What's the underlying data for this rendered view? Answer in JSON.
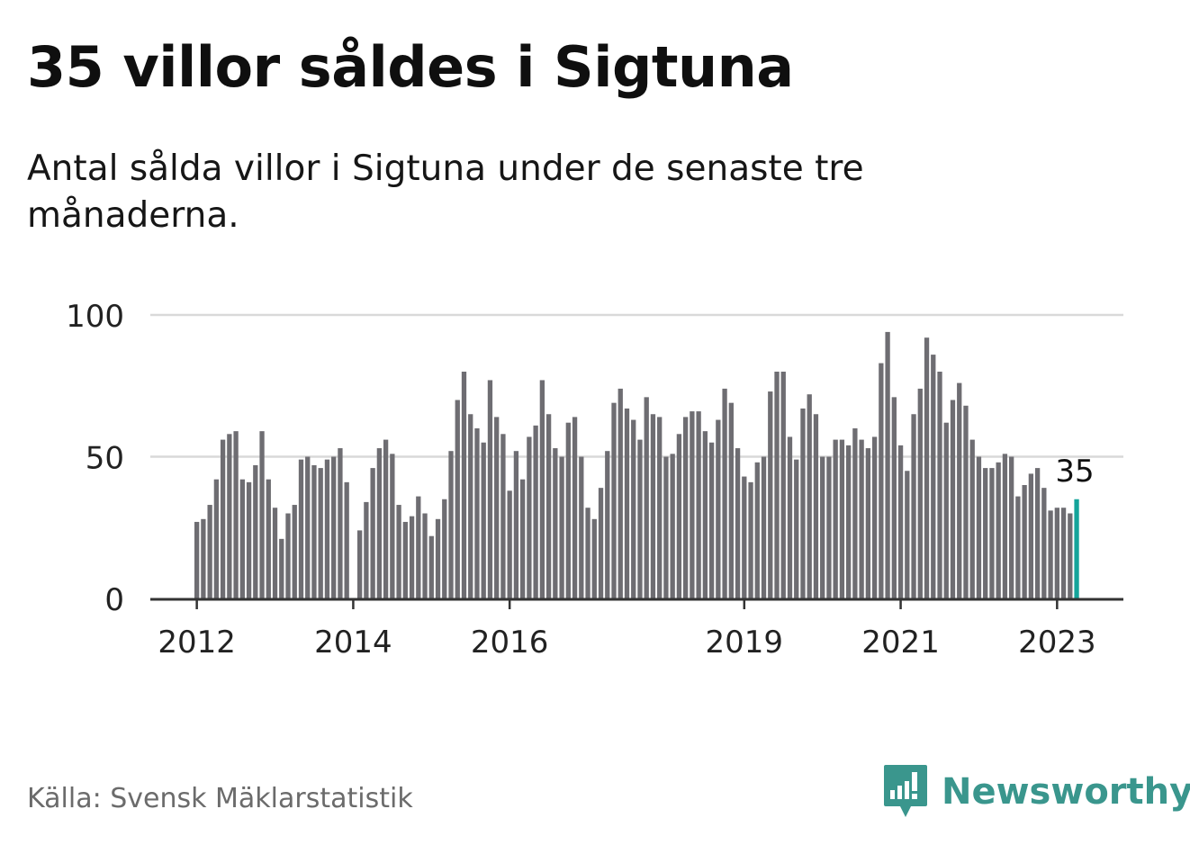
{
  "title": "35 villor såldes i Sigtuna",
  "subtitle": "Antal sålda villor i Sigtuna under de senaste tre månaderna.",
  "source": "Källa: Svensk Mäklarstatistik",
  "brand": {
    "name": "Newsworthy",
    "icon": "newsworthy-logo-icon",
    "color": "#3a968d"
  },
  "colors": {
    "bar": "#6e6d72",
    "highlight": "#14a49a",
    "grid": "#d9d9d9",
    "axis": "#333333",
    "text": "#222222"
  },
  "chart_data": {
    "type": "bar",
    "title": "35 villor såldes i Sigtuna",
    "subtitle": "Antal sålda villor i Sigtuna under de senaste tre månaderna.",
    "xlabel": "",
    "ylabel": "",
    "ylim": [
      0,
      100
    ],
    "yticks": [
      0,
      50,
      100
    ],
    "grid": true,
    "x_ticks": [
      {
        "label": "2012",
        "index": 0
      },
      {
        "label": "2014",
        "index": 24
      },
      {
        "label": "2016",
        "index": 48
      },
      {
        "label": "2019",
        "index": 84
      },
      {
        "label": "2021",
        "index": 108
      },
      {
        "label": "2023",
        "index": 132
      }
    ],
    "values": [
      27,
      28,
      33,
      42,
      56,
      58,
      59,
      42,
      41,
      47,
      59,
      42,
      32,
      21,
      30,
      33,
      49,
      50,
      47,
      46,
      49,
      50,
      53,
      41,
      null,
      24,
      34,
      46,
      53,
      56,
      51,
      33,
      27,
      29,
      36,
      30,
      22,
      28,
      35,
      52,
      70,
      80,
      65,
      60,
      55,
      77,
      64,
      58,
      38,
      52,
      42,
      57,
      61,
      77,
      65,
      53,
      50,
      62,
      64,
      50,
      32,
      28,
      39,
      52,
      69,
      74,
      67,
      63,
      56,
      71,
      65,
      64,
      50,
      51,
      58,
      64,
      66,
      66,
      59,
      55,
      63,
      74,
      69,
      53,
      43,
      41,
      48,
      50,
      73,
      80,
      80,
      57,
      49,
      67,
      72,
      65,
      50,
      50,
      56,
      56,
      54,
      60,
      56,
      53,
      57,
      83,
      94,
      71,
      54,
      45,
      65,
      74,
      92,
      86,
      80,
      62,
      70,
      76,
      68,
      56,
      50,
      46,
      46,
      48,
      51,
      50,
      36,
      40,
      44,
      46,
      39,
      31,
      32,
      32,
      30,
      35
    ],
    "highlight": {
      "index": 135,
      "value": 35,
      "label": "35"
    }
  }
}
